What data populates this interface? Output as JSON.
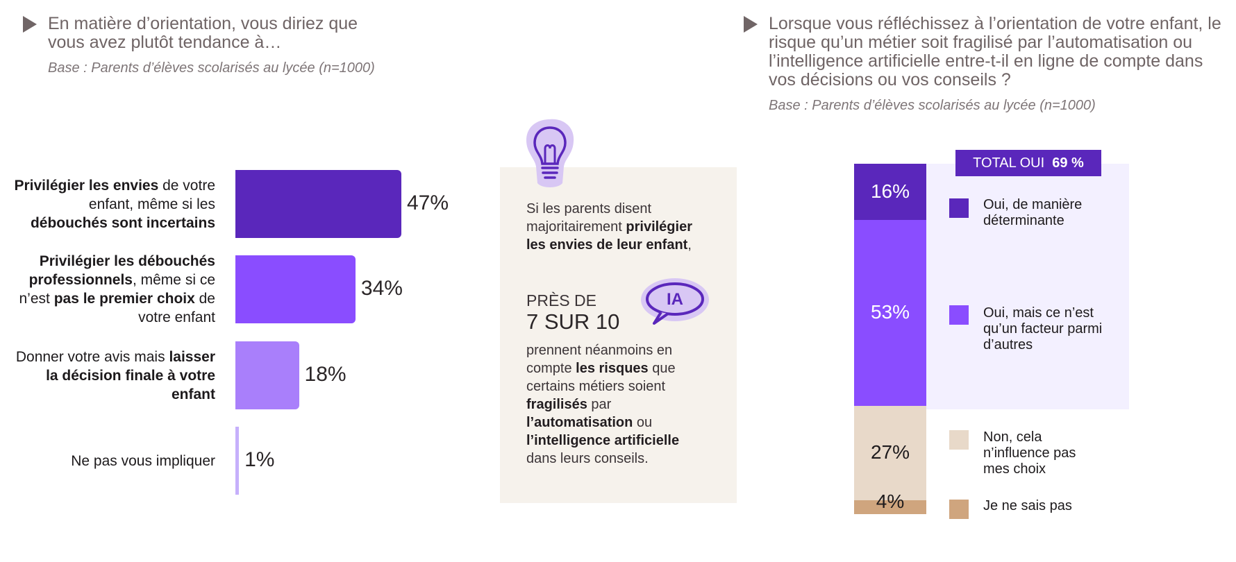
{
  "left": {
    "question": "En matière d’orientation, vous diriez que vous avez plutôt tendance à…",
    "base": "Base : Parents d’élèves scolarisés au lycée (n=1000)"
  },
  "right": {
    "question": "Lorsque vous réfléchissez à l’orientation de votre enfant, le risque qu’un métier soit fragilisé par l’automatisation ou l’intelligence artificielle entre-t-il en ligne de compte dans vos décisions ou vos conseils ?",
    "base": "Base : Parents d’élèves scolarisés au lycée (n=1000)",
    "total_label": "TOTAL OUI",
    "total_value": "69 %"
  },
  "middle": {
    "intro_plain": "Si les parents disent majoritairement ",
    "intro_bold": "privilégier les envies de leur enfant",
    "intro_end": ",",
    "pres_de": "PRÈS DE",
    "big_stat": "7 SUR 10",
    "badge": "IA",
    "body_1": "prennent néanmoins en compte ",
    "body_2": "les risques",
    "body_3": " que certains métiers soient ",
    "body_4": "fragilisés",
    "body_5": " par ",
    "body_6": "l’automatisation",
    "body_7": " ou ",
    "body_8": "l’intelligence artificielle",
    "body_9": " dans leurs conseils."
  },
  "colors": {
    "bar1": "#5a27bb",
    "bar2": "#8a4dff",
    "bar3": "#a97ffb",
    "bar4": "#c6b0fb",
    "seg_oui_det": "#5a27bb",
    "seg_oui_facteur": "#8a4dff",
    "seg_non": "#e8d9c9",
    "seg_nsp": "#cfa57e",
    "panel_bg": "#f3f0ff",
    "mid_bg": "#f6f2ec",
    "title_grey": "#6f6465"
  },
  "chart_data": [
    {
      "type": "bar",
      "orientation": "horizontal",
      "title": "En matière d’orientation, vous diriez que vous avez plutôt tendance à…",
      "categories": [
        {
          "parts": [
            {
              "t": "Privilégier les envies",
              "b": true
            },
            {
              "t": " de votre enfant, même si les ",
              "b": false
            },
            {
              "t": "débouchés sont incertains",
              "b": true
            }
          ]
        },
        {
          "parts": [
            {
              "t": "Privilégier les débouchés professionnels",
              "b": true
            },
            {
              "t": ", même si ce n’est ",
              "b": false
            },
            {
              "t": "pas le premier choix",
              "b": true
            },
            {
              "t": " de votre enfant",
              "b": false
            }
          ]
        },
        {
          "parts": [
            {
              "t": "Donner votre avis mais ",
              "b": false
            },
            {
              "t": "laisser la décision finale à votre enfant",
              "b": true
            }
          ]
        },
        {
          "parts": [
            {
              "t": "Ne pas vous impliquer",
              "b": false
            }
          ]
        }
      ],
      "values": [
        47,
        34,
        18,
        1
      ],
      "value_labels": [
        "47%",
        "34%",
        "18%",
        "1%"
      ],
      "unit": "%"
    },
    {
      "type": "bar",
      "orientation": "vertical-stacked",
      "title": "Lorsque vous réfléchissez à l’orientation de votre enfant, le risque qu’un métier soit fragilisé par l’automatisation ou l’intelligence artificielle entre-t-il en ligne de compte dans vos décisions ou vos conseils ?",
      "series": [
        {
          "name": "Oui, de manière déterminante",
          "value": 16,
          "label": "16%"
        },
        {
          "name": "Oui, mais ce n’est qu’un facteur parmi d’autres",
          "value": 53,
          "label": "53%"
        },
        {
          "name": "Non, cela n’influence pas mes choix",
          "value": 27,
          "label": "27%"
        },
        {
          "name": "Je ne sais pas",
          "value": 4,
          "label": "4%"
        }
      ],
      "total_oui": 69,
      "unit": "%"
    }
  ]
}
